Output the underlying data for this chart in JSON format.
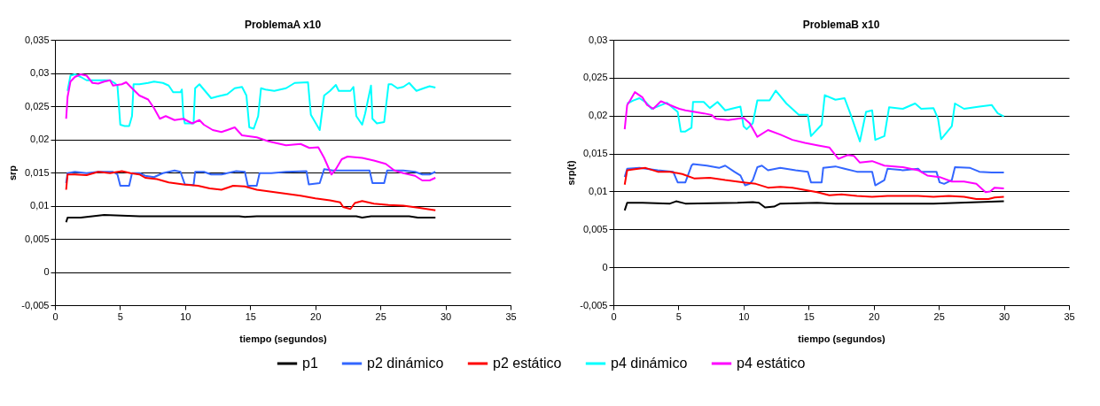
{
  "chart_data": [
    {
      "type": "line",
      "title": "ProblemaA x10",
      "xlabel": "tiempo (segundos)",
      "ylabel": "srp",
      "xlim": [
        0,
        35
      ],
      "xticks": [
        0,
        5,
        10,
        15,
        20,
        25,
        30,
        35
      ],
      "ylim": [
        -0.005,
        0.035
      ],
      "yticks": [
        {
          "value": -0.005,
          "label": "-0,005"
        },
        0,
        {
          "value": 0.005,
          "label": "0,005"
        },
        {
          "value": 0.01,
          "label": "0,01"
        },
        {
          "value": 0.015,
          "label": "0,015"
        },
        {
          "value": 0.02,
          "label": "0,02"
        },
        {
          "value": 0.025,
          "label": "0,025"
        },
        {
          "value": 0.03,
          "label": "0,03"
        },
        {
          "value": 0.035,
          "label": "0,035"
        }
      ],
      "grid": "y",
      "legend": "bottom",
      "series": [
        {
          "name": "p1",
          "color": "#000000",
          "x": [
            0.86,
            0.97,
            1.98,
            2.88,
            3.78,
            6.49,
            14.15,
            14.59,
            15.5,
            23.15,
            23.6,
            24.28,
            27.21,
            27.88,
            29.23
          ],
          "values": [
            0.0075,
            0.0082,
            0.0082,
            0.0084,
            0.0086,
            0.0084,
            0.0084,
            0.0083,
            0.0084,
            0.0084,
            0.0082,
            0.0084,
            0.0084,
            0.0082,
            0.0082
          ]
        },
        {
          "name": "p2 dinámico",
          "color": "#3366ff",
          "x": [
            0.86,
            0.97,
            1.53,
            2.43,
            3.33,
            4.46,
            4.8,
            5.02,
            5.7,
            5.92,
            6.49,
            6.94,
            7.61,
            8.29,
            9.19,
            9.64,
            9.98,
            10.65,
            10.77,
            11.44,
            12.0,
            12.79,
            13.92,
            14.59,
            14.82,
            15.5,
            15.72,
            16.62,
            17.75,
            19.32,
            19.5,
            20.34,
            20.68,
            21.35,
            22.25,
            24.17,
            24.39,
            25.29,
            25.52,
            26.76,
            27.66,
            28.22,
            28.78,
            29.23
          ],
          "values": [
            0.0134,
            0.0149,
            0.0151,
            0.0149,
            0.0151,
            0.0151,
            0.0147,
            0.013,
            0.013,
            0.0149,
            0.0149,
            0.0145,
            0.0143,
            0.0149,
            0.0153,
            0.0151,
            0.0132,
            0.0131,
            0.0151,
            0.0151,
            0.0147,
            0.0147,
            0.0152,
            0.0151,
            0.013,
            0.013,
            0.0149,
            0.0149,
            0.0151,
            0.0152,
            0.0132,
            0.0134,
            0.0155,
            0.0153,
            0.0153,
            0.0153,
            0.0134,
            0.0134,
            0.0153,
            0.0153,
            0.0151,
            0.0147,
            0.0147,
            0.0151
          ]
        },
        {
          "name": "p2 estático",
          "color": "#ff0000",
          "x": [
            0.86,
            0.97,
            1.53,
            2.43,
            3.33,
            4.23,
            5.14,
            5.81,
            6.49,
            6.94,
            7.84,
            8.74,
            9.86,
            10.99,
            11.89,
            12.79,
            13.69,
            14.59,
            15.5,
            16.62,
            17.75,
            18.87,
            20.0,
            21.13,
            21.91,
            22.14,
            22.7,
            23.04,
            23.6,
            24.5,
            25.63,
            26.76,
            27.88,
            29.23
          ],
          "values": [
            0.0124,
            0.0147,
            0.0147,
            0.0146,
            0.0151,
            0.0149,
            0.0152,
            0.0149,
            0.0147,
            0.0142,
            0.014,
            0.0135,
            0.0132,
            0.013,
            0.0126,
            0.0124,
            0.013,
            0.0129,
            0.0124,
            0.0121,
            0.0118,
            0.0115,
            0.0111,
            0.0108,
            0.0105,
            0.0098,
            0.0095,
            0.0104,
            0.0107,
            0.0103,
            0.0101,
            0.01,
            0.0097,
            0.0093
          ]
        },
        {
          "name": "p4 dinámico",
          "color": "#00ffff",
          "x": [
            0.97,
            1.19,
            1.53,
            1.98,
            2.43,
            3.33,
            4.23,
            4.57,
            4.8,
            5.02,
            5.36,
            5.7,
            5.92,
            6.04,
            6.49,
            7.16,
            7.61,
            8.29,
            8.74,
            9.08,
            9.64,
            9.75,
            9.86,
            9.98,
            10.65,
            10.77,
            11.1,
            11.44,
            12.0,
            12.57,
            13.24,
            13.81,
            14.37,
            14.71,
            14.93,
            15.27,
            15.61,
            15.83,
            16.17,
            16.85,
            17.75,
            18.42,
            19.44,
            19.66,
            20.34,
            20.68,
            21.13,
            21.58,
            21.8,
            22.7,
            22.93,
            23.15,
            23.6,
            23.83,
            24.28,
            24.39,
            24.73,
            25.29,
            25.63,
            25.86,
            26.31,
            26.76,
            27.21,
            27.77,
            28.33,
            28.78,
            29.23
          ],
          "values": [
            0.0273,
            0.0296,
            0.0298,
            0.0294,
            0.0289,
            0.0289,
            0.0289,
            0.0285,
            0.0281,
            0.0222,
            0.022,
            0.022,
            0.0235,
            0.0283,
            0.0283,
            0.0285,
            0.0287,
            0.0285,
            0.0281,
            0.0271,
            0.0271,
            0.0275,
            0.0235,
            0.0224,
            0.0224,
            0.0277,
            0.0283,
            0.0275,
            0.0262,
            0.0265,
            0.0268,
            0.0277,
            0.0279,
            0.0266,
            0.0218,
            0.0216,
            0.0235,
            0.0277,
            0.0275,
            0.0273,
            0.0277,
            0.0285,
            0.0286,
            0.0237,
            0.0214,
            0.0266,
            0.0273,
            0.0282,
            0.0273,
            0.0273,
            0.0279,
            0.0235,
            0.0222,
            0.0239,
            0.0281,
            0.0231,
            0.0224,
            0.0226,
            0.0283,
            0.0283,
            0.0277,
            0.0279,
            0.0285,
            0.0273,
            0.0277,
            0.028,
            0.0278
          ]
        },
        {
          "name": "p4 estático",
          "color": "#ff00ff",
          "x": [
            0.86,
            0.97,
            1.19,
            1.53,
            1.98,
            2.43,
            2.88,
            3.33,
            3.78,
            4.23,
            4.46,
            5.14,
            5.47,
            5.92,
            6.49,
            7.16,
            7.61,
            8.06,
            8.51,
            9.19,
            9.86,
            10.54,
            11.1,
            11.44,
            12.12,
            12.79,
            13.24,
            13.81,
            14.37,
            15.5,
            16.4,
            17.75,
            18.87,
            19.55,
            20.23,
            20.68,
            21.24,
            21.58,
            22.03,
            22.48,
            23.6,
            24.5,
            25.41,
            26.08,
            26.76,
            27.66,
            28.22,
            28.78,
            29.23
          ],
          "values": [
            0.0231,
            0.0264,
            0.0287,
            0.0294,
            0.0298,
            0.0296,
            0.0285,
            0.0284,
            0.0287,
            0.0289,
            0.0281,
            0.0283,
            0.0286,
            0.0277,
            0.0266,
            0.026,
            0.0247,
            0.0231,
            0.0235,
            0.0229,
            0.0231,
            0.0224,
            0.0229,
            0.0222,
            0.0214,
            0.0211,
            0.0214,
            0.0218,
            0.0206,
            0.0203,
            0.0197,
            0.0191,
            0.0193,
            0.0187,
            0.0188,
            0.0172,
            0.0147,
            0.0155,
            0.017,
            0.0174,
            0.0172,
            0.0168,
            0.0163,
            0.0153,
            0.0149,
            0.0145,
            0.0138,
            0.0138,
            0.0142
          ]
        }
      ]
    },
    {
      "type": "line",
      "title": "ProblemaB x10",
      "xlabel": "tiempo (segundos)",
      "ylabel": "srp(t)",
      "xlim": [
        0,
        35
      ],
      "xticks": [
        0,
        5,
        10,
        15,
        20,
        25,
        30,
        35
      ],
      "ylim": [
        -0.005,
        0.03
      ],
      "yticks": [
        {
          "value": -0.005,
          "label": "-0,005"
        },
        0,
        {
          "value": 0.005,
          "label": "0,005"
        },
        {
          "value": 0.01,
          "label": "0,01"
        },
        {
          "value": 0.015,
          "label": "0,015"
        },
        {
          "value": 0.02,
          "label": "0,02"
        },
        {
          "value": 0.025,
          "label": "0,025"
        },
        {
          "value": 0.03,
          "label": "0,03"
        }
      ],
      "grid": "y",
      "legend": "bottom",
      "series": [
        {
          "name": "p1",
          "color": "#000000",
          "x": [
            0.87,
            1.06,
            2.24,
            4.35,
            4.82,
            5.53,
            9.53,
            10.71,
            11.18,
            11.65,
            12.35,
            12.82,
            15.65,
            17.06,
            19.88,
            24.59,
            30.0
          ],
          "values": [
            0.0075,
            0.0085,
            0.0085,
            0.0084,
            0.0087,
            0.0084,
            0.0085,
            0.0086,
            0.0085,
            0.0079,
            0.008,
            0.0084,
            0.0085,
            0.0084,
            0.0084,
            0.0084,
            0.0087
          ]
        },
        {
          "name": "p2 dinámico",
          "color": "#3366ff",
          "x": [
            0.87,
            1.06,
            2.0,
            3.41,
            4.59,
            4.94,
            5.53,
            6.0,
            6.12,
            7.18,
            8.12,
            8.59,
            9.29,
            9.76,
            10.12,
            10.47,
            10.71,
            11.06,
            11.41,
            11.88,
            12.82,
            14.0,
            14.94,
            15.18,
            16.0,
            16.12,
            17.06,
            17.76,
            18.71,
            19.88,
            20.12,
            20.82,
            21.06,
            22.24,
            23.41,
            23.65,
            24.82,
            25.06,
            25.41,
            26.0,
            26.24,
            27.41,
            28.12,
            29.06,
            30.0
          ],
          "values": [
            0.0119,
            0.013,
            0.0131,
            0.0128,
            0.0126,
            0.0112,
            0.0112,
            0.0134,
            0.0136,
            0.0134,
            0.0131,
            0.0134,
            0.0126,
            0.0121,
            0.0108,
            0.011,
            0.0115,
            0.0132,
            0.0134,
            0.0128,
            0.0131,
            0.0128,
            0.0126,
            0.0112,
            0.0112,
            0.0131,
            0.0133,
            0.013,
            0.0126,
            0.0126,
            0.0108,
            0.0115,
            0.013,
            0.0128,
            0.013,
            0.0126,
            0.0126,
            0.0112,
            0.011,
            0.0115,
            0.0132,
            0.0131,
            0.0126,
            0.0125,
            0.0125
          ]
        },
        {
          "name": "p2 estático",
          "color": "#ff0000",
          "x": [
            0.87,
            1.06,
            1.53,
            2.47,
            3.41,
            4.35,
            5.29,
            6.24,
            7.41,
            8.59,
            10.0,
            10.94,
            11.88,
            12.82,
            13.76,
            14.71,
            15.65,
            16.59,
            17.53,
            18.71,
            19.88,
            21.06,
            23.41,
            24.59,
            25.76,
            26.94,
            27.88,
            28.82,
            29.29,
            30.0
          ],
          "values": [
            0.0109,
            0.0128,
            0.0129,
            0.0131,
            0.0126,
            0.0126,
            0.0123,
            0.0117,
            0.0118,
            0.0115,
            0.0112,
            0.011,
            0.0105,
            0.0106,
            0.0105,
            0.0102,
            0.0099,
            0.0095,
            0.0096,
            0.0094,
            0.0093,
            0.0094,
            0.0094,
            0.0093,
            0.0094,
            0.0093,
            0.009,
            0.009,
            0.0092,
            0.0093
          ]
        },
        {
          "name": "p4 dinámico",
          "color": "#00ffff",
          "x": [
            1.06,
            1.53,
            2.0,
            2.47,
            2.94,
            3.41,
            4.12,
            4.59,
            4.94,
            5.18,
            5.53,
            6.0,
            6.12,
            6.94,
            7.41,
            8.0,
            8.59,
            9.06,
            9.76,
            10.0,
            10.24,
            10.71,
            11.06,
            12.0,
            12.47,
            13.29,
            14.24,
            14.94,
            15.18,
            16.0,
            16.24,
            17.06,
            17.76,
            18.24,
            18.94,
            19.41,
            19.88,
            20.12,
            20.82,
            21.18,
            22.24,
            23.18,
            23.65,
            24.59,
            24.94,
            25.18,
            26.0,
            26.24,
            26.94,
            28.12,
            29.06,
            29.53,
            30.0
          ],
          "values": [
            0.0216,
            0.022,
            0.0223,
            0.0218,
            0.0209,
            0.0212,
            0.0217,
            0.021,
            0.0205,
            0.0179,
            0.0179,
            0.0184,
            0.0218,
            0.0218,
            0.021,
            0.0218,
            0.0207,
            0.0209,
            0.0212,
            0.0186,
            0.0182,
            0.019,
            0.022,
            0.022,
            0.0233,
            0.0216,
            0.0201,
            0.0201,
            0.0173,
            0.0188,
            0.0227,
            0.0221,
            0.0223,
            0.0201,
            0.0166,
            0.0205,
            0.0207,
            0.0168,
            0.0173,
            0.0211,
            0.0209,
            0.0216,
            0.0209,
            0.021,
            0.0196,
            0.0169,
            0.0186,
            0.0216,
            0.0209,
            0.0212,
            0.0214,
            0.0203,
            0.0199
          ]
        },
        {
          "name": "p4 estático",
          "color": "#ff00ff",
          "x": [
            0.87,
            1.06,
            1.29,
            1.65,
            2.24,
            2.59,
            3.06,
            3.65,
            4.35,
            5.06,
            5.53,
            6.24,
            6.94,
            7.53,
            7.88,
            8.82,
            10.0,
            10.47,
            11.06,
            11.88,
            12.82,
            13.76,
            14.71,
            15.65,
            16.59,
            17.29,
            18.0,
            18.47,
            18.94,
            19.88,
            20.82,
            22.24,
            23.41,
            24.12,
            25.06,
            26.0,
            26.94,
            27.88,
            28.59,
            28.94,
            29.29,
            30.0
          ],
          "values": [
            0.0182,
            0.0214,
            0.022,
            0.0231,
            0.0224,
            0.0214,
            0.0209,
            0.0219,
            0.0214,
            0.0209,
            0.0207,
            0.0205,
            0.0203,
            0.0201,
            0.0196,
            0.0194,
            0.0197,
            0.019,
            0.0172,
            0.0181,
            0.0175,
            0.0168,
            0.0164,
            0.0161,
            0.0158,
            0.0143,
            0.0148,
            0.0147,
            0.0138,
            0.014,
            0.0134,
            0.0132,
            0.0128,
            0.0121,
            0.0119,
            0.0113,
            0.0113,
            0.011,
            0.0099,
            0.01,
            0.0105,
            0.0104
          ]
        }
      ]
    }
  ]
}
